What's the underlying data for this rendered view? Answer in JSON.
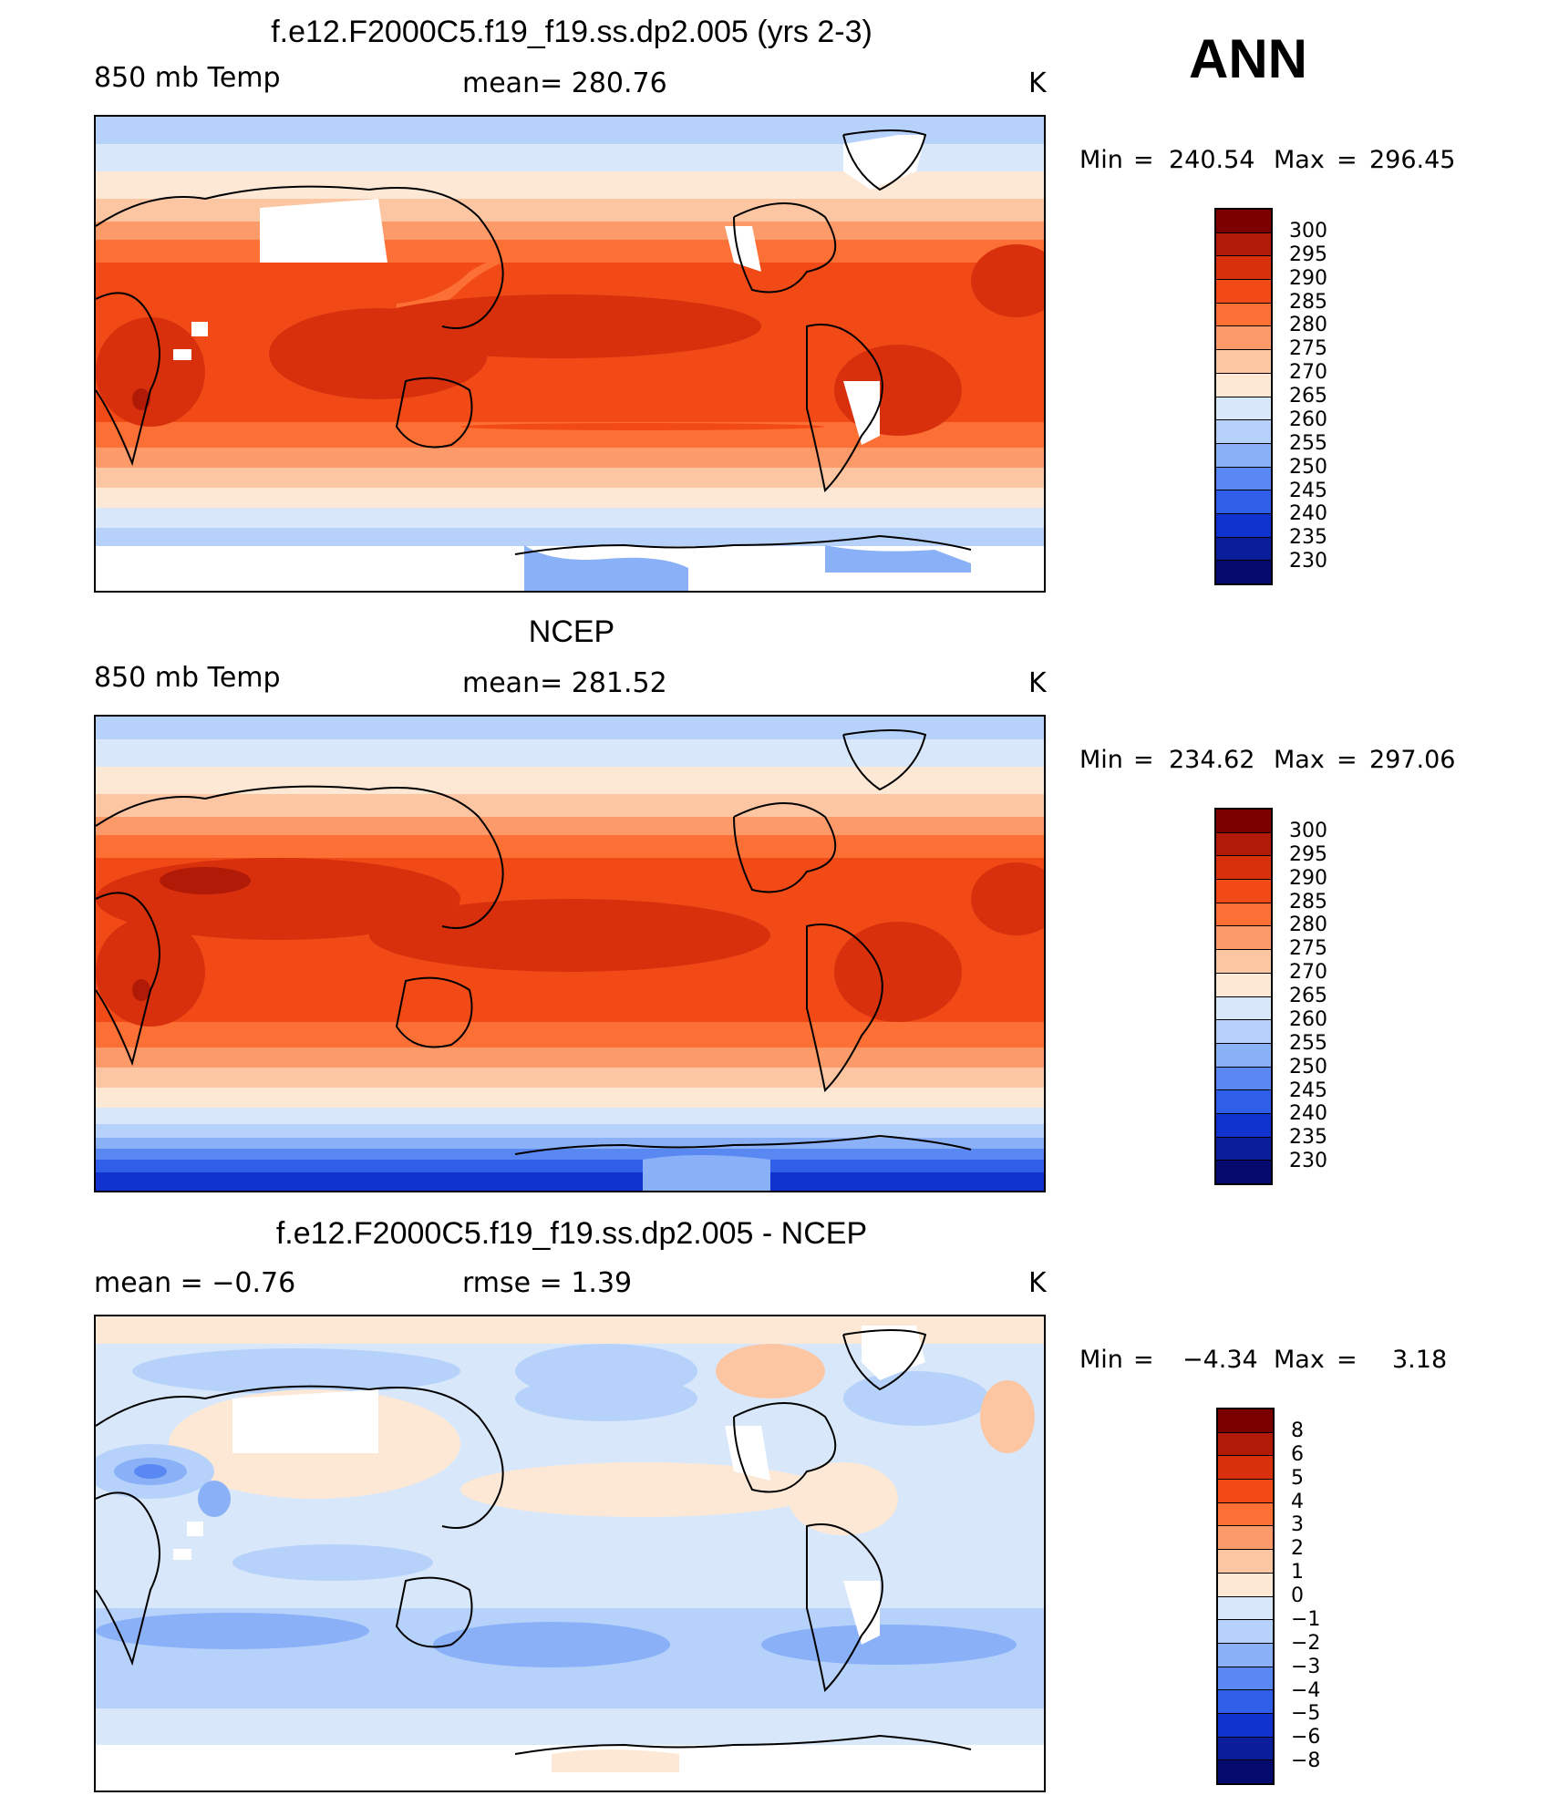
{
  "header": {
    "ann": "ANN"
  },
  "panels": [
    {
      "title": "f.e12.F2000C5.f19_f19.ss.dp2.005 (yrs 2-3)",
      "left_label": "850 mb Temp",
      "center_label": "mean=  280.76",
      "units": "K",
      "min_label": "Min",
      "min_value": "240.54",
      "max_label": "Max",
      "max_value": "296.45",
      "colorbar_ticks": [
        "300",
        "295",
        "290",
        "285",
        "280",
        "275",
        "270",
        "265",
        "260",
        "255",
        "250",
        "245",
        "240",
        "235",
        "230"
      ]
    },
    {
      "title": "NCEP",
      "left_label": "850 mb Temp",
      "center_label": "mean=  281.52",
      "units": "K",
      "min_label": "Min",
      "min_value": "234.62",
      "max_label": "Max",
      "max_value": "297.06",
      "colorbar_ticks": [
        "300",
        "295",
        "290",
        "285",
        "280",
        "275",
        "270",
        "265",
        "260",
        "255",
        "250",
        "245",
        "240",
        "235",
        "230"
      ]
    },
    {
      "title": "f.e12.F2000C5.f19_f19.ss.dp2.005 - NCEP",
      "left_label": "mean  =    −0.76",
      "center_label": "rmse  =     1.39",
      "units": "K",
      "min_label": "Min",
      "min_value": "−4.34",
      "max_label": "Max",
      "max_value": "3.18",
      "colorbar_ticks": [
        "8",
        "6",
        "5",
        "4",
        "3",
        "2",
        "1",
        "0",
        "−1",
        "−2",
        "−3",
        "−4",
        "−5",
        "−6",
        "−8"
      ]
    }
  ],
  "colors": {
    "temp_scale": [
      "#7a0000",
      "#b01a06",
      "#d8300d",
      "#f24a17",
      "#fc6f35",
      "#fc9a6a",
      "#fdc6a3",
      "#fde8d5",
      "#d8e8fa",
      "#b6d2fb",
      "#8ab0f8",
      "#5a88f2",
      "#2f5fe8",
      "#1033cf",
      "#0a1e9c",
      "#040a6e"
    ],
    "diff_scale": [
      "#7a0000",
      "#b01a06",
      "#d8300d",
      "#f24a17",
      "#fc6f35",
      "#fc9a6a",
      "#fdc6a3",
      "#fde8d5",
      "#d8e8fa",
      "#b6d2fb",
      "#8ab0f8",
      "#5a88f2",
      "#2f5fe8",
      "#1033cf",
      "#0a1e9c",
      "#040a6e"
    ]
  }
}
